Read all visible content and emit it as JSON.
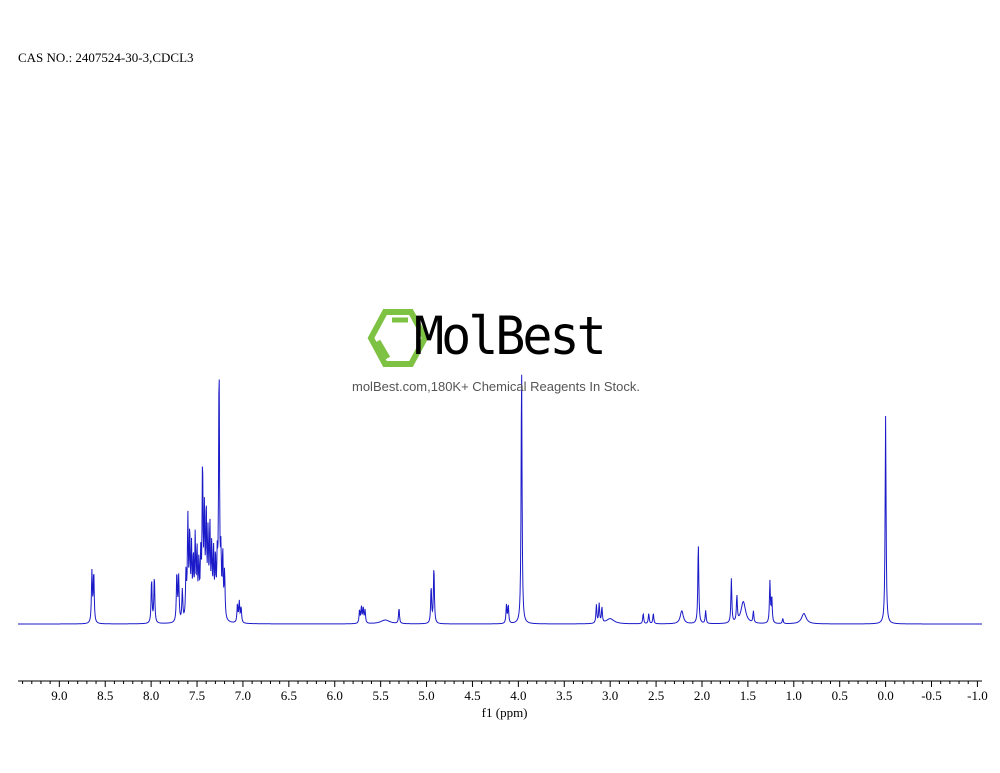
{
  "header": {
    "title": "CAS NO.: 2407524-30-3,CDCL3"
  },
  "watermark": {
    "brand": "MolBest",
    "tagline": "molBest.com,180K+ Chemical Reagents In Stock.",
    "logo_color": "#7dc242"
  },
  "colors": {
    "spectrum_line": "#1a1ac8",
    "axis": "#000000"
  },
  "chart_data": {
    "type": "line",
    "title": "",
    "xlabel": "f1 (ppm)",
    "ylabel": "",
    "x_reversed": true,
    "xlim": [
      9.45,
      -1.05
    ],
    "ylim": [
      0,
      1
    ],
    "grid": false,
    "x_ticks": [
      9.0,
      8.5,
      8.0,
      7.5,
      7.0,
      6.5,
      6.0,
      5.5,
      5.0,
      4.5,
      4.0,
      3.5,
      3.0,
      2.5,
      2.0,
      1.5,
      1.0,
      0.5,
      0.0,
      -0.5,
      -1.0
    ],
    "x_tick_labels": [
      "9.0",
      "8.5",
      "8.0",
      "7.5",
      "7.0",
      "6.5",
      "6.0",
      "5.5",
      "5.0",
      "4.5",
      "4.0",
      "3.5",
      "3.0",
      "2.5",
      "2.0",
      "1.5",
      "1.0",
      "0.5",
      "0.0",
      "-0.5",
      "-1.0"
    ],
    "peaks": [
      {
        "ppm": 8.645,
        "height": 0.195
      },
      {
        "ppm": 8.625,
        "height": 0.195
      },
      {
        "ppm": 7.995,
        "height": 0.17
      },
      {
        "ppm": 7.965,
        "height": 0.18
      },
      {
        "ppm": 7.72,
        "height": 0.19
      },
      {
        "ppm": 7.7,
        "height": 0.17
      },
      {
        "ppm": 7.66,
        "height": 0.12
      },
      {
        "ppm": 7.62,
        "height": 0.18
      },
      {
        "ppm": 7.6,
        "height": 0.38
      },
      {
        "ppm": 7.58,
        "height": 0.32
      },
      {
        "ppm": 7.56,
        "height": 0.26
      },
      {
        "ppm": 7.54,
        "height": 0.22
      },
      {
        "ppm": 7.52,
        "height": 0.3
      },
      {
        "ppm": 7.5,
        "height": 0.25
      },
      {
        "ppm": 7.48,
        "height": 0.2
      },
      {
        "ppm": 7.46,
        "height": 0.22
      },
      {
        "ppm": 7.44,
        "height": 0.58
      },
      {
        "ppm": 7.42,
        "height": 0.38
      },
      {
        "ppm": 7.4,
        "height": 0.4
      },
      {
        "ppm": 7.38,
        "height": 0.3
      },
      {
        "ppm": 7.36,
        "height": 0.34
      },
      {
        "ppm": 7.34,
        "height": 0.26
      },
      {
        "ppm": 7.32,
        "height": 0.24
      },
      {
        "ppm": 7.3,
        "height": 0.22
      },
      {
        "ppm": 7.28,
        "height": 0.2
      },
      {
        "ppm": 7.26,
        "height": 0.97
      },
      {
        "ppm": 7.24,
        "height": 0.22
      },
      {
        "ppm": 7.22,
        "height": 0.24
      },
      {
        "ppm": 7.2,
        "height": 0.18
      },
      {
        "ppm": 7.06,
        "height": 0.07
      },
      {
        "ppm": 7.04,
        "height": 0.08
      },
      {
        "ppm": 7.02,
        "height": 0.06
      },
      {
        "ppm": 5.73,
        "height": 0.05
      },
      {
        "ppm": 5.71,
        "height": 0.06
      },
      {
        "ppm": 5.69,
        "height": 0.06
      },
      {
        "ppm": 5.67,
        "height": 0.05
      },
      {
        "ppm": 5.45,
        "height": 0.015,
        "width": 0.06
      },
      {
        "ppm": 5.3,
        "height": 0.06
      },
      {
        "ppm": 4.95,
        "height": 0.14
      },
      {
        "ppm": 4.92,
        "height": 0.22
      },
      {
        "ppm": 4.13,
        "height": 0.07
      },
      {
        "ppm": 4.11,
        "height": 0.07
      },
      {
        "ppm": 3.965,
        "height": 1.0
      },
      {
        "ppm": 3.15,
        "height": 0.07
      },
      {
        "ppm": 3.12,
        "height": 0.075
      },
      {
        "ppm": 3.09,
        "height": 0.06
      },
      {
        "ppm": 3.0,
        "height": 0.02,
        "width": 0.05
      },
      {
        "ppm": 2.64,
        "height": 0.04
      },
      {
        "ppm": 2.58,
        "height": 0.04
      },
      {
        "ppm": 2.53,
        "height": 0.04
      },
      {
        "ppm": 2.22,
        "height": 0.05,
        "width": 0.02
      },
      {
        "ppm": 2.04,
        "height": 0.31
      },
      {
        "ppm": 1.96,
        "height": 0.05
      },
      {
        "ppm": 1.68,
        "height": 0.17
      },
      {
        "ppm": 1.62,
        "height": 0.1
      },
      {
        "ppm": 1.55,
        "height": 0.085,
        "width": 0.03
      },
      {
        "ppm": 1.44,
        "height": 0.045
      },
      {
        "ppm": 1.26,
        "height": 0.16
      },
      {
        "ppm": 1.24,
        "height": 0.1
      },
      {
        "ppm": 1.12,
        "height": 0.02
      },
      {
        "ppm": 0.89,
        "height": 0.04,
        "width": 0.03
      },
      {
        "ppm": 0.0,
        "height": 0.8
      }
    ]
  }
}
